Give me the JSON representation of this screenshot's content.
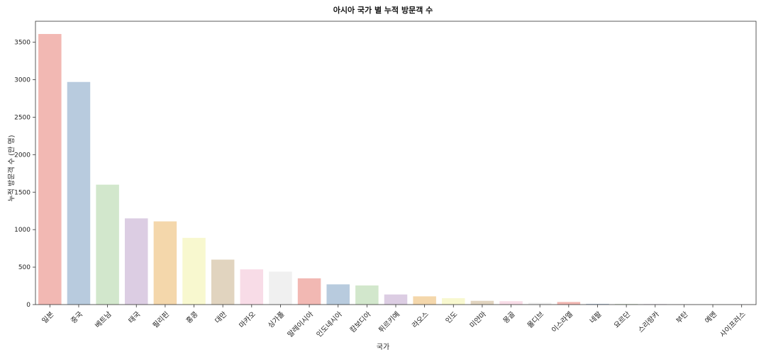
{
  "chart_data": {
    "type": "bar",
    "title": "아시아 국가 별 누적 방문객 수",
    "xlabel": "국가",
    "ylabel": "누적 방문객 수 (만 명)",
    "ylim": [
      0,
      3780
    ],
    "yticks": [
      0,
      500,
      1000,
      1500,
      2000,
      2500,
      3000,
      3500
    ],
    "grid": false,
    "categories": [
      "일본",
      "중국",
      "베트남",
      "태국",
      "필리핀",
      "홍콩",
      "대만",
      "마카오",
      "싱가폴",
      "말레이시아",
      "인도네시아",
      "캄보디아",
      "튀르키예",
      "라오스",
      "인도",
      "미얀마",
      "몽골",
      "몰디브",
      "이스라엘",
      "네팔",
      "요르단",
      "스리랑카",
      "부탄",
      "예멘",
      "사이프러스"
    ],
    "values": [
      3610,
      2970,
      1600,
      1150,
      1110,
      890,
      600,
      470,
      440,
      350,
      270,
      255,
      135,
      110,
      85,
      50,
      45,
      25,
      35,
      10,
      8,
      6,
      1,
      0.5,
      0.5
    ],
    "colors": [
      "#f2b8b3",
      "#b8cbde",
      "#d2e7cc",
      "#dccde3",
      "#f4d7ab",
      "#f8f8cf",
      "#e1d4bf",
      "#f8dce7",
      "#f0f0f0",
      "#f2b8b3",
      "#b8cbde",
      "#d2e7cc",
      "#dccde3",
      "#f4d7ab",
      "#f8f8cf",
      "#e1d4bf",
      "#f8dce7",
      "#f0f0f0",
      "#f2b8b3",
      "#b8cbde",
      "#d2e7cc",
      "#dccde3",
      "#f4d7ab",
      "#f8f8cf",
      "#e1d4bf"
    ]
  }
}
